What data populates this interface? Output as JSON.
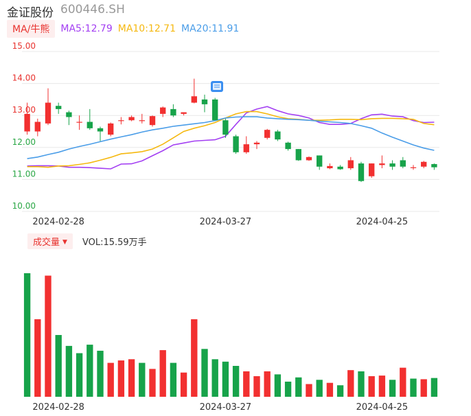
{
  "header": {
    "name": "金证股份",
    "code": "600446.SH"
  },
  "ma_legend": {
    "button": "MA/牛熊",
    "ma5": {
      "label": "MA5:12.79",
      "color": "#a33ff2"
    },
    "ma10": {
      "label": "MA10:12.71",
      "color": "#f5b80f"
    },
    "ma20": {
      "label": "MA20:11.91",
      "color": "#4a9de8"
    }
  },
  "volume_legend": {
    "button": "成交量",
    "value": "VOL:15.59万手"
  },
  "colors": {
    "up": "#f23030",
    "down": "#17a34a",
    "ma5": "#a33ff2",
    "ma10": "#f5b80f",
    "ma20": "#4a9de8",
    "grid": "#e8e8e8"
  },
  "chart_data": [
    {
      "type": "candlestick",
      "title": "",
      "ylim": [
        10.0,
        15.0
      ],
      "y_ticks": [
        "15.00",
        "14.00",
        "13.00",
        "12.00",
        "11.00",
        "10.00"
      ],
      "x_tick_labels": [
        {
          "index": 3,
          "label": "2024-02-28"
        },
        {
          "index": 19,
          "label": "2024-03-27"
        },
        {
          "index": 34,
          "label": "2024-04-25"
        }
      ],
      "candles": [
        {
          "o": 12.5,
          "c": 13.05,
          "h": 13.4,
          "l": 12.4
        },
        {
          "o": 12.5,
          "c": 12.8,
          "h": 12.9,
          "l": 12.35
        },
        {
          "o": 12.75,
          "c": 13.4,
          "h": 13.85,
          "l": 12.7
        },
        {
          "o": 13.3,
          "c": 13.2,
          "h": 13.4,
          "l": 13.05
        },
        {
          "o": 13.1,
          "c": 12.95,
          "h": 13.15,
          "l": 12.7
        },
        {
          "o": 12.8,
          "c": 12.8,
          "h": 13.0,
          "l": 12.55
        },
        {
          "o": 12.8,
          "c": 12.6,
          "h": 13.2,
          "l": 12.55
        },
        {
          "o": 12.6,
          "c": 12.5,
          "h": 12.65,
          "l": 12.2
        },
        {
          "o": 12.4,
          "c": 12.75,
          "h": 12.78,
          "l": 12.35
        },
        {
          "o": 12.85,
          "c": 12.85,
          "h": 12.95,
          "l": 12.72
        },
        {
          "o": 12.85,
          "c": 12.95,
          "h": 13.0,
          "l": 12.82
        },
        {
          "o": 12.85,
          "c": 12.85,
          "h": 13.05,
          "l": 12.75
        },
        {
          "o": 12.7,
          "c": 12.98,
          "h": 13.0,
          "l": 12.65
        },
        {
          "o": 13.05,
          "c": 13.25,
          "h": 13.28,
          "l": 12.95
        },
        {
          "o": 13.2,
          "c": 13.0,
          "h": 13.35,
          "l": 12.95
        },
        {
          "o": 13.05,
          "c": 13.1,
          "h": 13.1,
          "l": 13.0
        },
        {
          "o": 13.4,
          "c": 13.6,
          "h": 14.15,
          "l": 13.38
        },
        {
          "o": 13.5,
          "c": 13.35,
          "h": 13.65,
          "l": 13.1
        },
        {
          "o": 13.5,
          "c": 12.85,
          "h": 13.55,
          "l": 12.85
        },
        {
          "o": 12.85,
          "c": 12.4,
          "h": 12.9,
          "l": 12.3
        },
        {
          "o": 12.35,
          "c": 11.85,
          "h": 12.4,
          "l": 11.8
        },
        {
          "o": 11.85,
          "c": 12.1,
          "h": 12.35,
          "l": 11.8
        },
        {
          "o": 12.1,
          "c": 12.15,
          "h": 12.2,
          "l": 11.95
        },
        {
          "o": 12.3,
          "c": 12.55,
          "h": 12.58,
          "l": 12.25
        },
        {
          "o": 12.5,
          "c": 12.25,
          "h": 12.55,
          "l": 12.2
        },
        {
          "o": 12.15,
          "c": 11.95,
          "h": 12.18,
          "l": 11.9
        },
        {
          "o": 11.95,
          "c": 11.6,
          "h": 11.95,
          "l": 11.58
        },
        {
          "o": 11.6,
          "c": 11.7,
          "h": 11.72,
          "l": 11.58
        },
        {
          "o": 11.75,
          "c": 11.4,
          "h": 11.75,
          "l": 11.3
        },
        {
          "o": 11.35,
          "c": 11.42,
          "h": 11.5,
          "l": 11.32
        },
        {
          "o": 11.4,
          "c": 11.32,
          "h": 11.45,
          "l": 11.3
        },
        {
          "o": 11.35,
          "c": 11.6,
          "h": 11.7,
          "l": 11.3
        },
        {
          "o": 11.5,
          "c": 10.95,
          "h": 11.55,
          "l": 10.92
        },
        {
          "o": 11.1,
          "c": 11.5,
          "h": 11.5,
          "l": 11.05
        },
        {
          "o": 11.45,
          "c": 11.5,
          "h": 11.75,
          "l": 11.35
        },
        {
          "o": 11.5,
          "c": 11.4,
          "h": 11.6,
          "l": 11.3
        },
        {
          "o": 11.6,
          "c": 11.4,
          "h": 11.7,
          "l": 11.35
        },
        {
          "o": 11.38,
          "c": 11.38,
          "h": 11.45,
          "l": 11.3
        },
        {
          "o": 11.4,
          "c": 11.55,
          "h": 11.58,
          "l": 11.35
        },
        {
          "o": 11.48,
          "c": 11.38,
          "h": 11.5,
          "l": 11.3
        }
      ],
      "series": [
        {
          "name": "MA5",
          "values": [
            11.42,
            11.43,
            11.43,
            11.42,
            11.38,
            11.38,
            11.37,
            11.35,
            11.33,
            11.48,
            11.49,
            11.58,
            11.74,
            11.9,
            12.08,
            12.14,
            12.2,
            12.22,
            12.24,
            12.35,
            12.72,
            13.08,
            13.2,
            13.28,
            13.15,
            13.05,
            13.0,
            12.92,
            12.78,
            12.72,
            12.72,
            12.75,
            12.9,
            13.02,
            13.04,
            12.98,
            12.96,
            12.84,
            12.78,
            12.79
          ]
        },
        {
          "name": "MA10",
          "values": [
            11.4,
            11.4,
            11.38,
            11.42,
            11.43,
            11.47,
            11.52,
            11.6,
            11.69,
            11.8,
            11.83,
            11.87,
            11.95,
            12.1,
            12.3,
            12.5,
            12.6,
            12.68,
            12.78,
            12.92,
            13.05,
            13.12,
            13.12,
            13.05,
            12.96,
            12.9,
            12.88,
            12.85,
            12.85,
            12.86,
            12.88,
            12.88,
            12.87,
            12.9,
            12.91,
            12.91,
            12.9,
            12.88,
            12.75,
            12.71
          ]
        },
        {
          "name": "MA20",
          "values": [
            11.65,
            11.7,
            11.78,
            11.85,
            11.95,
            12.03,
            12.1,
            12.18,
            12.26,
            12.33,
            12.4,
            12.48,
            12.55,
            12.6,
            12.66,
            12.7,
            12.74,
            12.78,
            12.84,
            12.92,
            12.95,
            12.96,
            12.96,
            12.92,
            12.9,
            12.88,
            12.87,
            12.85,
            12.82,
            12.8,
            12.78,
            12.75,
            12.68,
            12.6,
            12.45,
            12.32,
            12.2,
            12.08,
            11.98,
            11.91
          ]
        }
      ]
    },
    {
      "type": "bar",
      "title": "",
      "series": [
        {
          "values": [
            10.2,
            6.4,
            10.0,
            5.1,
            4.2,
            3.6,
            4.3,
            3.8,
            2.8,
            3.0,
            3.1,
            2.8,
            2.3,
            3.85,
            2.8,
            2.0,
            6.4,
            3.95,
            3.1,
            2.9,
            2.55,
            2.1,
            1.7,
            2.1,
            1.85,
            1.25,
            1.6,
            1.05,
            1.4,
            1.15,
            0.95,
            2.2,
            2.1,
            1.7,
            1.75,
            1.4,
            2.4,
            1.5,
            1.45,
            1.55
          ],
          "directions": [
            "down",
            "up",
            "up",
            "down",
            "down",
            "down",
            "down",
            "down",
            "up",
            "up",
            "up",
            "down",
            "up",
            "up",
            "down",
            "up",
            "up",
            "down",
            "down",
            "down",
            "down",
            "up",
            "up",
            "up",
            "down",
            "down",
            "down",
            "up",
            "down",
            "up",
            "down",
            "up",
            "down",
            "up",
            "up",
            "down",
            "up",
            "down",
            "up",
            "down"
          ]
        }
      ],
      "x_tick_labels": [
        {
          "index": 3,
          "label": "2024-02-28"
        },
        {
          "index": 19,
          "label": "2024-03-27"
        },
        {
          "index": 34,
          "label": "2024-04-25"
        }
      ]
    }
  ]
}
